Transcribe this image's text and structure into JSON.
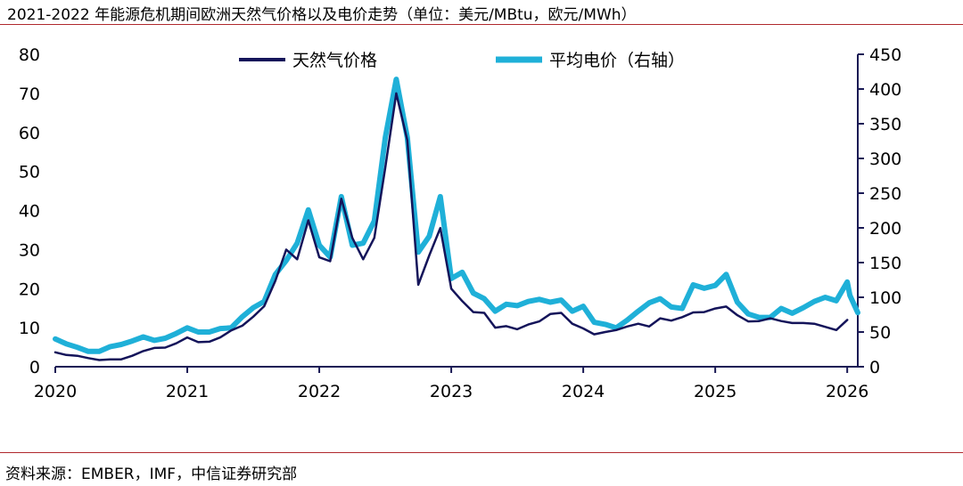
{
  "header": {
    "title": "2021-2022 年能源危机期间欧洲天然气价格以及电价走势（单位：美元/MBtu，欧元/MWh）"
  },
  "footer": {
    "source": "资料来源：EMBER，IMF，中信证券研究部"
  },
  "colors": {
    "gas": "#14145a",
    "power": "#1fb0d8",
    "axis": "#1a1a55",
    "rule": "#b0282d"
  },
  "chart_data": {
    "type": "line",
    "title": "2021-2022 年能源危机期间欧洲天然气价格以及电价走势（单位：美元/MBtu，欧元/MWh）",
    "x_ticks": [
      "2020",
      "2021",
      "2022",
      "2023",
      "2024",
      "2025",
      "2026"
    ],
    "y_left": {
      "ticks": [
        "0",
        "10",
        "20",
        "30",
        "40",
        "50",
        "60",
        "70",
        "80"
      ],
      "ylim": [
        0,
        80
      ],
      "unit": "美元/MBtu"
    },
    "y_right": {
      "ticks": [
        "0",
        "50",
        "100",
        "150",
        "200",
        "250",
        "300",
        "350",
        "400",
        "450"
      ],
      "ylim": [
        0,
        450
      ],
      "unit": "欧元/MWh"
    },
    "xlim": [
      2020,
      2026.08
    ],
    "legend_position": "top-center",
    "series": [
      {
        "name": "天然气价格",
        "axis": "left",
        "x": [
          2020.0,
          2020.083,
          2020.167,
          2020.25,
          2020.333,
          2020.417,
          2020.5,
          2020.583,
          2020.667,
          2020.75,
          2020.833,
          2020.917,
          2021.0,
          2021.083,
          2021.167,
          2021.25,
          2021.333,
          2021.417,
          2021.5,
          2021.583,
          2021.667,
          2021.75,
          2021.833,
          2021.917,
          2022.0,
          2022.083,
          2022.167,
          2022.25,
          2022.333,
          2022.417,
          2022.5,
          2022.583,
          2022.667,
          2022.75,
          2022.833,
          2022.917,
          2023.0,
          2023.083,
          2023.167,
          2023.25,
          2023.333,
          2023.417,
          2023.5,
          2023.583,
          2023.667,
          2023.75,
          2023.833,
          2023.917,
          2024.0,
          2024.083,
          2024.167,
          2024.25,
          2024.333,
          2024.417,
          2024.5,
          2024.583,
          2024.667,
          2024.75,
          2024.833,
          2024.917,
          2025.0,
          2025.083,
          2025.167,
          2025.25,
          2025.333,
          2025.417,
          2025.5,
          2025.583,
          2025.667,
          2025.75,
          2025.833,
          2025.917,
          2026.0
        ],
        "values": [
          3.7,
          3.0,
          2.8,
          2.2,
          1.7,
          1.9,
          1.9,
          2.8,
          4.0,
          4.8,
          4.9,
          6.0,
          7.5,
          6.3,
          6.4,
          7.5,
          9.3,
          10.5,
          12.8,
          15.5,
          22.0,
          30.0,
          27.5,
          37.5,
          28.0,
          27.0,
          43.0,
          33.0,
          27.5,
          33.0,
          51.0,
          70.0,
          58.0,
          21.0,
          28.5,
          35.5,
          20.0,
          16.8,
          14.0,
          13.8,
          10.0,
          10.4,
          9.6,
          10.8,
          11.6,
          13.5,
          13.8,
          11.0,
          9.8,
          8.3,
          8.9,
          9.4,
          10.3,
          11.0,
          10.3,
          12.4,
          11.8,
          12.7,
          13.9,
          14.0,
          14.9,
          15.4,
          13.2,
          11.6,
          11.7,
          12.4,
          11.7,
          11.2,
          11.2,
          11.0,
          10.2,
          9.4,
          12.0
        ]
      },
      {
        "name": "平均电价（右轴）",
        "axis": "right",
        "x": [
          2020.0,
          2020.083,
          2020.167,
          2020.25,
          2020.333,
          2020.417,
          2020.5,
          2020.583,
          2020.667,
          2020.75,
          2020.833,
          2020.917,
          2021.0,
          2021.083,
          2021.167,
          2021.25,
          2021.333,
          2021.417,
          2021.5,
          2021.583,
          2021.667,
          2021.75,
          2021.833,
          2021.917,
          2022.0,
          2022.083,
          2022.167,
          2022.25,
          2022.333,
          2022.417,
          2022.5,
          2022.583,
          2022.667,
          2022.75,
          2022.833,
          2022.917,
          2023.0,
          2023.083,
          2023.167,
          2023.25,
          2023.333,
          2023.417,
          2023.5,
          2023.583,
          2023.667,
          2023.75,
          2023.833,
          2023.917,
          2024.0,
          2024.083,
          2024.167,
          2024.25,
          2024.333,
          2024.417,
          2024.5,
          2024.583,
          2024.667,
          2024.75,
          2024.833,
          2024.917,
          2025.0,
          2025.083,
          2025.167,
          2025.25,
          2025.333,
          2025.417,
          2025.5,
          2025.583,
          2025.667,
          2025.75,
          2025.833,
          2025.917,
          2026.0,
          2026.02,
          2026.08
        ],
        "values": [
          40,
          33,
          28,
          22,
          22,
          29,
          32,
          37,
          43,
          38,
          41,
          48,
          56,
          50,
          50,
          55,
          56,
          72,
          85,
          94,
          133,
          153,
          178,
          226,
          175,
          158,
          245,
          175,
          178,
          210,
          330,
          414,
          330,
          165,
          188,
          245,
          127,
          136,
          106,
          98,
          80,
          90,
          88,
          94,
          97,
          93,
          96,
          80,
          87,
          64,
          61,
          56,
          67,
          80,
          92,
          98,
          86,
          84,
          118,
          113,
          117,
          133,
          93,
          76,
          71,
          71,
          84,
          77,
          85,
          94,
          100,
          95,
          122,
          103,
          78
        ]
      }
    ]
  }
}
